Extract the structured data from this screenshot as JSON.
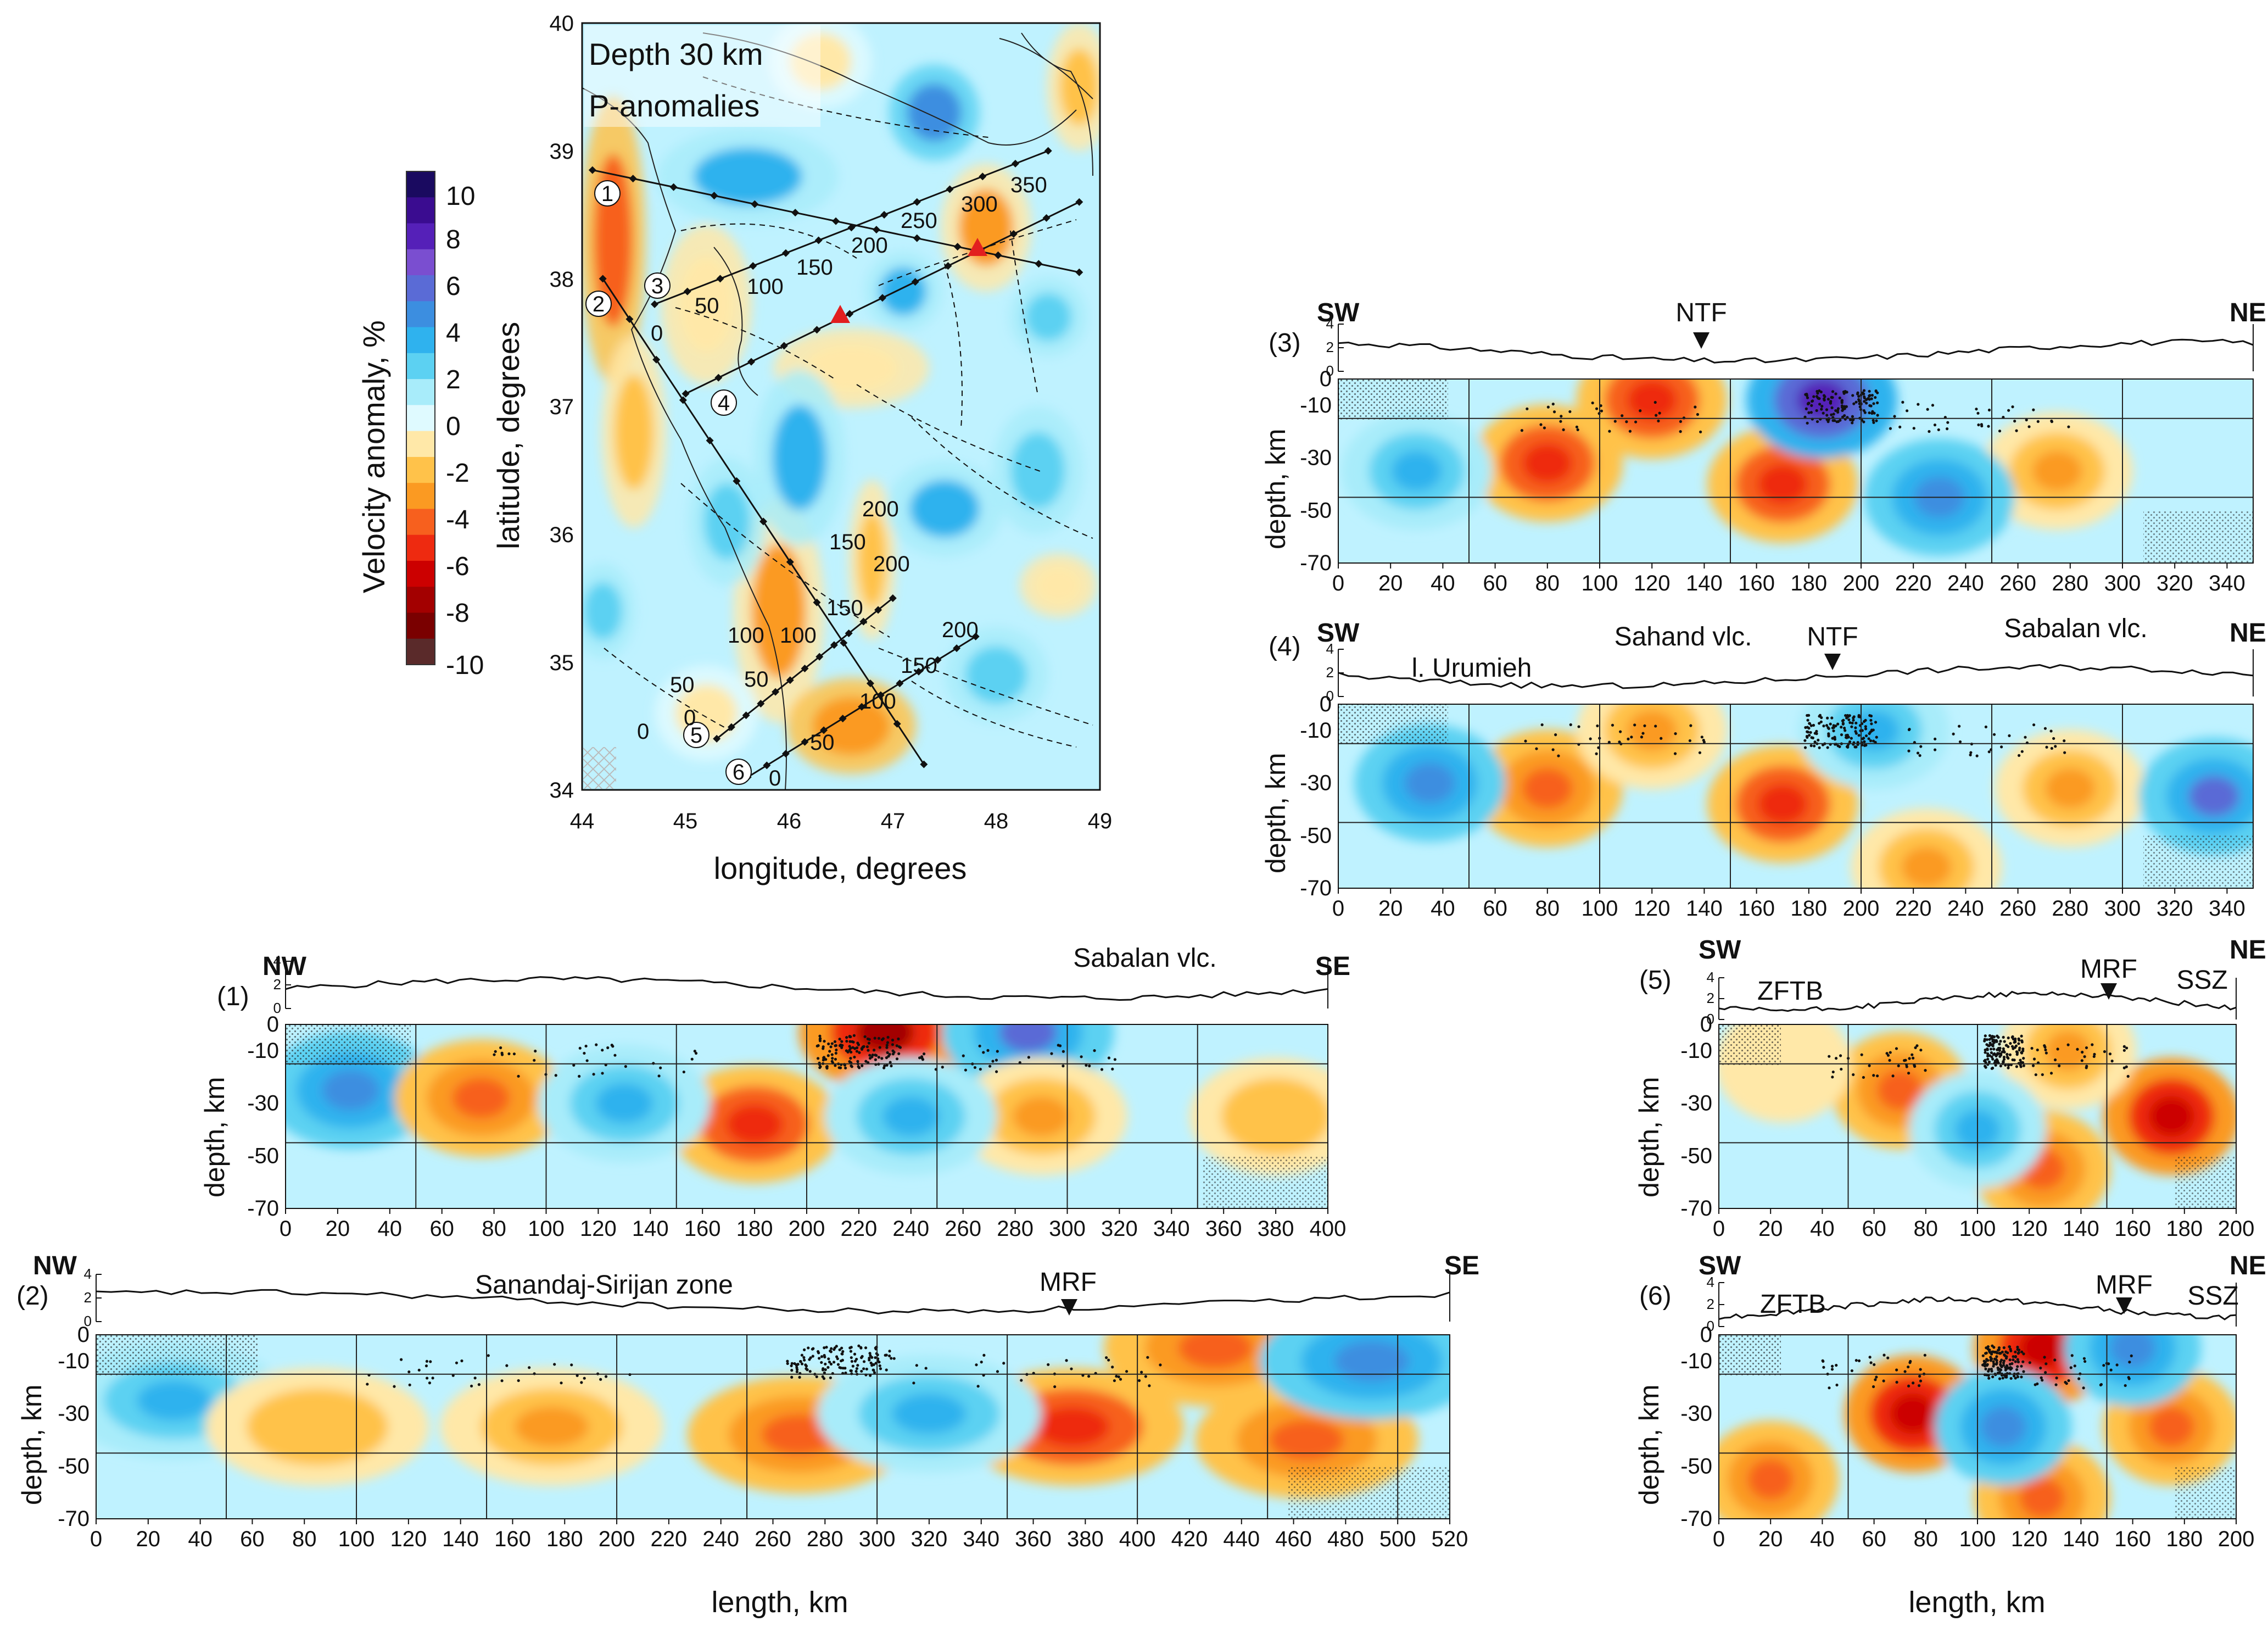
{
  "colors": {
    "scale": [
      "#5a2a2a",
      "#7a0000",
      "#a30000",
      "#cc0000",
      "#ee2a10",
      "#f7601e",
      "#fb9a22",
      "#ffc24a",
      "#ffe8a8",
      "#dffaff",
      "#a8ecfa",
      "#5cd1f2",
      "#2fb2ee",
      "#3c8ee0",
      "#5a6bd6",
      "#7a4ed0",
      "#5520b8",
      "#3a0c90",
      "#1a0a60"
    ],
    "map_bg": "#bff2ff",
    "marker": "#e21f1f"
  },
  "colorbar": {
    "title": "Velocity anomaly, %",
    "ticks": [
      "10",
      "8",
      "6",
      "4",
      "2",
      "0",
      "-2",
      "-4",
      "-6",
      "-8",
      "-10"
    ]
  },
  "map": {
    "title_line1": "Depth 30 km",
    "title_line2": "P-anomalies",
    "xlabel": "longitude, degrees",
    "ylabel": "latitude, degrees",
    "xticks": [
      "44",
      "45",
      "46",
      "47",
      "48",
      "49"
    ],
    "yticks": [
      "40",
      "39",
      "38",
      "37",
      "36",
      "35",
      "34"
    ],
    "profile_ids": [
      "1",
      "2",
      "3",
      "4",
      "5",
      "6"
    ],
    "km_labels": [
      "0",
      "50",
      "100",
      "150",
      "200",
      "250",
      "300",
      "350",
      "0",
      "50",
      "100",
      "150",
      "200",
      "0",
      "50",
      "100",
      "150",
      "200",
      "0",
      "50",
      "100",
      "150",
      "200"
    ]
  },
  "sections": [
    {
      "id": "(1)",
      "left": "NW",
      "right": "SE",
      "marks": [
        "Sabalan vlc."
      ],
      "xmax": 400
    },
    {
      "id": "(2)",
      "left": "NW",
      "right": "SE",
      "marks": [
        "Sanandaj-Sirijan zone",
        "MRF"
      ],
      "xmax": 520
    },
    {
      "id": "(3)",
      "left": "SW",
      "right": "NE",
      "marks": [
        "NTF"
      ],
      "xmax": 350
    },
    {
      "id": "(4)",
      "left": "SW",
      "right": "NE",
      "marks": [
        "l. Urumieh",
        "Sahand vlc.",
        "NTF",
        "Sabalan vlc."
      ],
      "xmax": 350
    },
    {
      "id": "(5)",
      "left": "SW",
      "right": "NE",
      "marks": [
        "ZFTB",
        "MRF",
        "SSZ"
      ],
      "xmax": 200
    },
    {
      "id": "(6)",
      "left": "SW",
      "right": "NE",
      "marks": [
        "ZFTB",
        "MRF",
        "SSZ"
      ],
      "xmax": 200
    }
  ],
  "section_axes": {
    "depth_label": "depth, km",
    "length_label": "length, km",
    "depth_ticks": [
      "0",
      "-10",
      "-30",
      "-50",
      "-70"
    ],
    "elev_ticks": [
      "4",
      "2",
      "0"
    ]
  },
  "chart_data": [
    {
      "type": "heatmap",
      "title": "Depth 30 km P-anomalies",
      "xlabel": "longitude, degrees",
      "ylabel": "latitude, degrees",
      "xlim": [
        44,
        49
      ],
      "ylim": [
        34,
        40
      ],
      "colorbar": {
        "label": "Velocity anomaly, %",
        "range": [
          -10,
          10
        ]
      },
      "profiles": [
        {
          "id": 1,
          "start": [
            44.1,
            38.85
          ],
          "end": [
            48.8,
            38.05
          ]
        },
        {
          "id": 2,
          "start": [
            44.2,
            38.0
          ],
          "end": [
            47.3,
            34.2
          ]
        },
        {
          "id": 3,
          "start": [
            44.7,
            37.8
          ],
          "end": [
            48.5,
            39.0
          ]
        },
        {
          "id": 4,
          "start": [
            45.0,
            37.1
          ],
          "end": [
            48.8,
            38.6
          ]
        },
        {
          "id": 5,
          "start": [
            45.3,
            34.4
          ],
          "end": [
            47.0,
            35.5
          ]
        },
        {
          "id": 6,
          "start": [
            45.6,
            34.1
          ],
          "end": [
            47.8,
            35.2
          ]
        }
      ],
      "volcanoes": [
        [
          46.5,
          37.75
        ],
        [
          47.85,
          38.25
        ]
      ]
    },
    {
      "type": "heatmap",
      "id": "(1)",
      "xlabel": "length, km",
      "ylabel": "depth, km",
      "xlim": [
        0,
        400
      ],
      "ylim": [
        -70,
        0
      ],
      "xticks": [
        0,
        20,
        40,
        60,
        80,
        100,
        120,
        140,
        160,
        180,
        200,
        220,
        240,
        260,
        280,
        300,
        320,
        340,
        360,
        380,
        400
      ],
      "anomalies": [
        {
          "x": 25,
          "z": -25,
          "v": 4.5
        },
        {
          "x": 75,
          "z": -28,
          "v": -4
        },
        {
          "x": 180,
          "z": -38,
          "v": -5.5
        },
        {
          "x": 230,
          "z": -3,
          "v": -8
        },
        {
          "x": 285,
          "z": -3,
          "v": 5
        },
        {
          "x": 290,
          "z": -35,
          "v": -3
        },
        {
          "x": 380,
          "z": -35,
          "v": -2.5
        },
        {
          "x": 130,
          "z": -30,
          "v": 3
        },
        {
          "x": 240,
          "z": -35,
          "v": 3.5
        }
      ]
    },
    {
      "type": "heatmap",
      "id": "(2)",
      "xlabel": "length, km",
      "ylabel": "depth, km",
      "xlim": [
        0,
        520
      ],
      "ylim": [
        -70,
        0
      ],
      "xticks": [
        0,
        20,
        40,
        60,
        80,
        100,
        120,
        140,
        160,
        180,
        200,
        220,
        240,
        260,
        280,
        300,
        320,
        340,
        360,
        380,
        400,
        420,
        440,
        460,
        480,
        500,
        520
      ],
      "anomalies": [
        {
          "x": 30,
          "z": -25,
          "v": 3.5
        },
        {
          "x": 85,
          "z": -35,
          "v": -2.5
        },
        {
          "x": 175,
          "z": -35,
          "v": -3.5
        },
        {
          "x": 270,
          "z": -38,
          "v": -4.5
        },
        {
          "x": 375,
          "z": -35,
          "v": -6
        },
        {
          "x": 430,
          "z": -5,
          "v": -5
        },
        {
          "x": 465,
          "z": -40,
          "v": -5
        },
        {
          "x": 490,
          "z": -10,
          "v": 4
        },
        {
          "x": 320,
          "z": -30,
          "v": 3
        }
      ]
    },
    {
      "type": "heatmap",
      "id": "(3)",
      "xlabel": "length, km",
      "ylabel": "depth, km",
      "xlim": [
        0,
        350
      ],
      "ylim": [
        -70,
        0
      ],
      "xticks": [
        0,
        20,
        40,
        60,
        80,
        100,
        120,
        140,
        160,
        180,
        200,
        220,
        240,
        260,
        280,
        300,
        320,
        340
      ],
      "anomalies": [
        {
          "x": 80,
          "z": -32,
          "v": -6
        },
        {
          "x": 120,
          "z": -8,
          "v": -6
        },
        {
          "x": 170,
          "z": -40,
          "v": -5.5
        },
        {
          "x": 185,
          "z": -8,
          "v": 8
        },
        {
          "x": 275,
          "z": -35,
          "v": -3.5
        },
        {
          "x": 30,
          "z": -35,
          "v": 3.5
        },
        {
          "x": 230,
          "z": -45,
          "v": 4
        }
      ]
    },
    {
      "type": "heatmap",
      "id": "(4)",
      "xlabel": "length, km",
      "ylabel": "depth, km",
      "xlim": [
        0,
        350
      ],
      "ylim": [
        -70,
        0
      ],
      "xticks": [
        0,
        20,
        40,
        60,
        80,
        100,
        120,
        140,
        160,
        180,
        200,
        220,
        240,
        260,
        280,
        300,
        320,
        340
      ],
      "anomalies": [
        {
          "x": 80,
          "z": -32,
          "v": -4
        },
        {
          "x": 120,
          "z": -10,
          "v": -3
        },
        {
          "x": 170,
          "z": -38,
          "v": -6
        },
        {
          "x": 280,
          "z": -32,
          "v": -3.5
        },
        {
          "x": 225,
          "z": -62,
          "v": -3.5
        },
        {
          "x": 35,
          "z": -30,
          "v": 4
        },
        {
          "x": 335,
          "z": -35,
          "v": 5
        },
        {
          "x": 205,
          "z": -10,
          "v": 3.5
        }
      ]
    },
    {
      "type": "heatmap",
      "id": "(5)",
      "xlabel": "length, km",
      "ylabel": "depth, km",
      "xlim": [
        0,
        200
      ],
      "ylim": [
        -70,
        0
      ],
      "xticks": [
        0,
        20,
        40,
        60,
        80,
        100,
        120,
        140,
        160,
        180,
        200
      ],
      "anomalies": [
        {
          "x": 70,
          "z": -25,
          "v": -4
        },
        {
          "x": 125,
          "z": -55,
          "v": -5
        },
        {
          "x": 175,
          "z": -35,
          "v": -7
        },
        {
          "x": 135,
          "z": -10,
          "v": -3
        },
        {
          "x": 100,
          "z": -40,
          "v": 3
        },
        {
          "x": 25,
          "z": -15,
          "v": -1.5
        }
      ]
    },
    {
      "type": "heatmap",
      "id": "(6)",
      "xlabel": "length, km",
      "ylabel": "depth, km",
      "xlim": [
        0,
        200
      ],
      "ylim": [
        -70,
        0
      ],
      "xticks": [
        0,
        20,
        40,
        60,
        80,
        100,
        120,
        140,
        160,
        180,
        200
      ],
      "anomalies": [
        {
          "x": 75,
          "z": -30,
          "v": -7
        },
        {
          "x": 125,
          "z": -5,
          "v": -7
        },
        {
          "x": 175,
          "z": -35,
          "v": -5
        },
        {
          "x": 20,
          "z": -55,
          "v": -4
        },
        {
          "x": 125,
          "z": -62,
          "v": -4
        },
        {
          "x": 110,
          "z": -35,
          "v": 4
        },
        {
          "x": 160,
          "z": -5,
          "v": 4
        }
      ]
    }
  ]
}
